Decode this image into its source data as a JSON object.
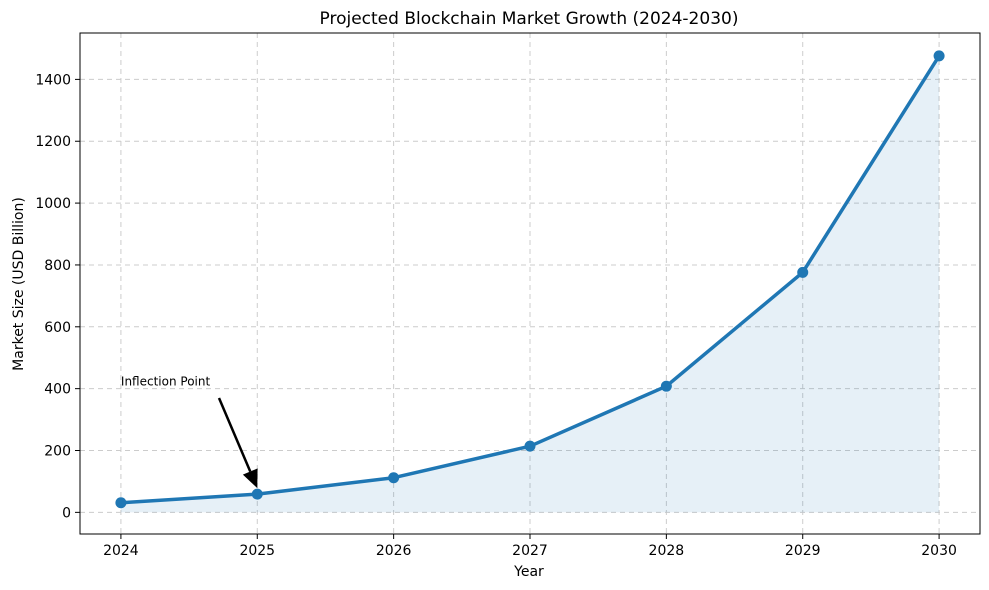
{
  "chart_data": {
    "type": "line",
    "title": "Projected Blockchain Market Growth (2024-2030)",
    "xlabel": "Year",
    "ylabel": "Market Size (USD Billion)",
    "x": [
      2024,
      2025,
      2026,
      2027,
      2028,
      2029,
      2030
    ],
    "series": [
      {
        "values": [
          31,
          59,
          112,
          214,
          408,
          776,
          1476
        ]
      }
    ],
    "xlim": [
      2023.7,
      2030.3
    ],
    "ylim": [
      -70,
      1550
    ],
    "yticks": [
      0,
      200,
      400,
      600,
      800,
      1000,
      1200,
      1400
    ],
    "xticks": [
      2024,
      2025,
      2026,
      2027,
      2028,
      2029,
      2030
    ],
    "grid": true,
    "fill_under": true,
    "colors": {
      "line": "#1f77b4",
      "fill": "#1f77b4",
      "annotation": "#000000"
    },
    "annotations": [
      {
        "text": "Inflection Point",
        "text_at": [
          2024.0,
          400
        ],
        "arrow_to": [
          2025,
          59
        ]
      }
    ]
  }
}
